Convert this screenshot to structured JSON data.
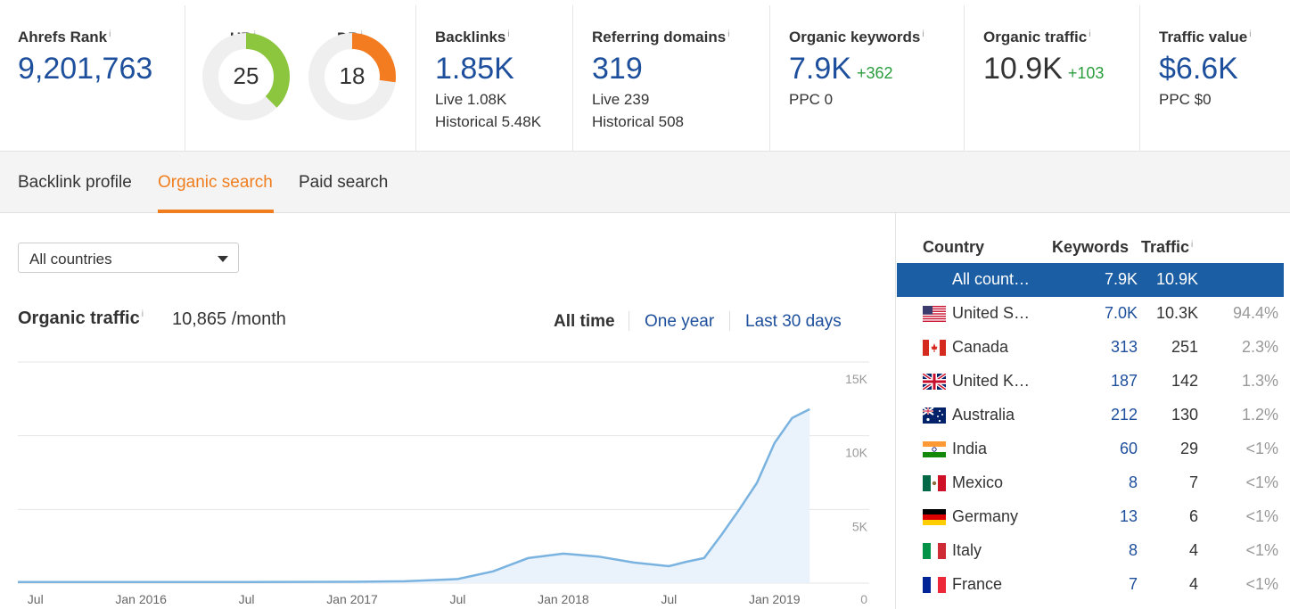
{
  "metrics": {
    "ahrefs_rank": {
      "label": "Ahrefs Rank",
      "value": "9,201,763"
    },
    "ur": {
      "label": "UR",
      "value": "25",
      "score": 25,
      "color": "#8cc63f"
    },
    "dr": {
      "label": "DR",
      "value": "18",
      "score": 18,
      "color": "#f47c20"
    },
    "backlinks": {
      "label": "Backlinks",
      "value": "1.85K",
      "live": "Live 1.08K",
      "historical": "Historical 5.48K"
    },
    "referring_domains": {
      "label": "Referring domains",
      "value": "319",
      "live": "Live 239",
      "historical": "Historical 508"
    },
    "organic_keywords": {
      "label": "Organic keywords",
      "value": "7.9K",
      "delta": "+362",
      "ppc": "PPC 0"
    },
    "organic_traffic": {
      "label": "Organic traffic",
      "value": "10.9K",
      "delta": "+103"
    },
    "traffic_value": {
      "label": "Traffic value",
      "value": "$6.6K",
      "ppc": "PPC $0"
    },
    "info_mark": "i"
  },
  "tabs": {
    "backlink_profile": "Backlink profile",
    "organic_search": "Organic search",
    "paid_search": "Paid search",
    "active": "organic_search"
  },
  "filter": {
    "selected": "All countries"
  },
  "organic": {
    "title": "Organic traffic",
    "value": "10,865 /month",
    "ranges": {
      "all_time": "All time",
      "one_year": "One year",
      "last_30_days": "Last 30 days",
      "active": "all_time"
    }
  },
  "chart_data": {
    "type": "area",
    "title": "",
    "xlabel": "",
    "ylabel": "",
    "x_ticks": [
      "Jul",
      "Jan 2016",
      "Jul",
      "Jan 2017",
      "Jul",
      "Jan 2018",
      "Jul",
      "Jan 2019"
    ],
    "y_ticks": [
      "15K",
      "10K",
      "5K",
      "0"
    ],
    "ylim": [
      0,
      15000
    ],
    "grid": true,
    "line_color": "#7ab3e0",
    "fill_color": "#eaf3fc",
    "series": [
      {
        "points": [
          [
            "2015-06",
            80
          ],
          [
            "2015-09",
            80
          ],
          [
            "2016-01",
            80
          ],
          [
            "2016-07",
            80
          ],
          [
            "2017-01",
            90
          ],
          [
            "2017-04",
            130
          ],
          [
            "2017-07",
            280
          ],
          [
            "2017-09",
            800
          ],
          [
            "2017-11",
            1700
          ],
          [
            "2018-01",
            2000
          ],
          [
            "2018-03",
            1800
          ],
          [
            "2018-05",
            1400
          ],
          [
            "2018-07",
            1150
          ],
          [
            "2018-08",
            1450
          ],
          [
            "2018-09",
            1700
          ],
          [
            "2018-10",
            3300
          ],
          [
            "2018-11",
            5000
          ],
          [
            "2018-12",
            6800
          ],
          [
            "2019-01",
            9500
          ],
          [
            "2019-02",
            11200
          ],
          [
            "2019-03",
            11800
          ]
        ]
      }
    ]
  },
  "countries": {
    "headers": {
      "country": "Country",
      "keywords": "Keywords",
      "traffic": "Traffic"
    },
    "rows": [
      {
        "name": "All count…",
        "keywords": "7.9K",
        "traffic": "10.9K",
        "share": "",
        "flag": "none"
      },
      {
        "name": "United S…",
        "keywords": "7.0K",
        "traffic": "10.3K",
        "share": "94.4%",
        "flag": "us-flag-icon"
      },
      {
        "name": "Canada",
        "keywords": "313",
        "traffic": "251",
        "share": "2.3%",
        "flag": "ca-flag-icon"
      },
      {
        "name": "United K…",
        "keywords": "187",
        "traffic": "142",
        "share": "1.3%",
        "flag": "uk-flag-icon"
      },
      {
        "name": "Australia",
        "keywords": "212",
        "traffic": "130",
        "share": "1.2%",
        "flag": "au-flag-icon"
      },
      {
        "name": "India",
        "keywords": "60",
        "traffic": "29",
        "share": "<1%",
        "flag": "in-flag-icon"
      },
      {
        "name": "Mexico",
        "keywords": "8",
        "traffic": "7",
        "share": "<1%",
        "flag": "mx-flag-icon"
      },
      {
        "name": "Germany",
        "keywords": "13",
        "traffic": "6",
        "share": "<1%",
        "flag": "de-flag-icon"
      },
      {
        "name": "Italy",
        "keywords": "8",
        "traffic": "4",
        "share": "<1%",
        "flag": "it-flag-icon"
      },
      {
        "name": "France",
        "keywords": "7",
        "traffic": "4",
        "share": "<1%",
        "flag": "fr-flag-icon"
      }
    ]
  }
}
